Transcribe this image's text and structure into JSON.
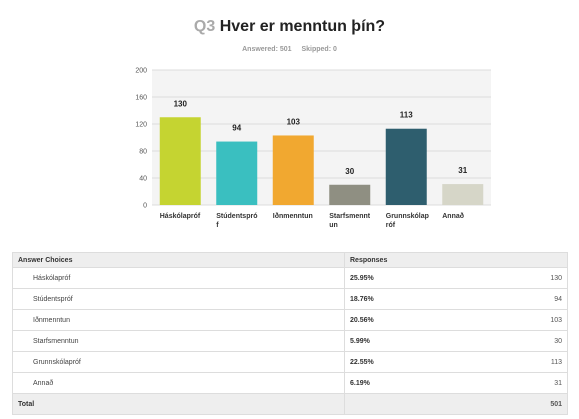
{
  "header": {
    "question_number": "Q3",
    "question": "Hver er menntun þín?",
    "answered_label": "Answered: 501",
    "skipped_label": "Skipped: 0"
  },
  "chart_data": {
    "type": "bar",
    "categories": [
      "Háskólapróf",
      "Stúdentspró f",
      "Iðnmenntun",
      "Starfsmenntun",
      "Grunnskólapróf",
      "Annað"
    ],
    "category_lines": [
      [
        "Háskólapróf"
      ],
      [
        "Stúdentspró",
        "f"
      ],
      [
        "Iðnmenntun"
      ],
      [
        "Starfsmennt",
        "un"
      ],
      [
        "Grunnskólap",
        "róf"
      ],
      [
        "Annað"
      ]
    ],
    "values": [
      130,
      94,
      103,
      30,
      113,
      31
    ],
    "colors": [
      "#c5d431",
      "#3abfc0",
      "#f1a830",
      "#8f8f82",
      "#2e5e6e",
      "#d6d6c8"
    ],
    "ylim": [
      0,
      200
    ],
    "yticks": [
      0,
      40,
      80,
      120,
      160,
      200
    ],
    "grid": true
  },
  "table": {
    "headers": [
      "Answer Choices",
      "Responses"
    ],
    "rows": [
      {
        "label": "Háskólapróf",
        "pct": "25.95%",
        "count": "130"
      },
      {
        "label": "Stúdentspróf",
        "pct": "18.76%",
        "count": "94"
      },
      {
        "label": "Iðnmenntun",
        "pct": "20.56%",
        "count": "103"
      },
      {
        "label": "Starfsmenntun",
        "pct": "5.99%",
        "count": "30"
      },
      {
        "label": "Grunnskólapróf",
        "pct": "22.55%",
        "count": "113"
      },
      {
        "label": "Annað",
        "pct": "6.19%",
        "count": "31"
      }
    ],
    "total_label": "Total",
    "total_value": "501"
  }
}
